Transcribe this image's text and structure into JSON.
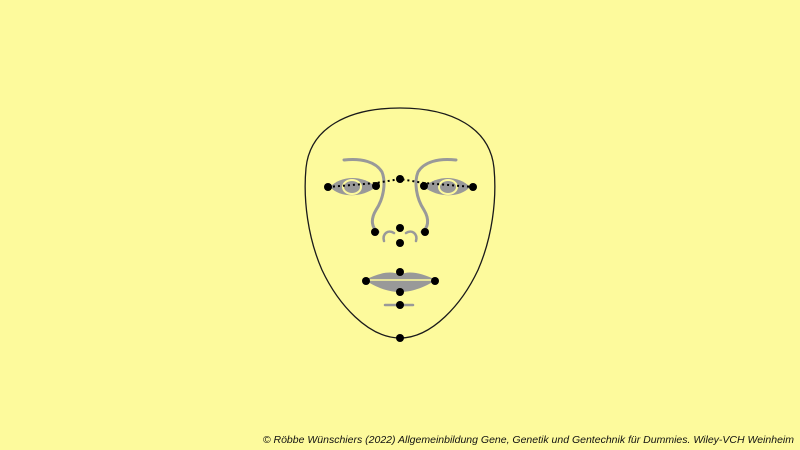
{
  "colors": {
    "background": "#fdfa9c",
    "outline": "#1a1a1a",
    "features": "#999999",
    "landmarks": "#000000"
  },
  "landmark_icon": "filled-circle",
  "landmark_count": 16,
  "connector_style": "dotted",
  "footer": {
    "copyright": "© Röbbe Wünschiers (2022) Allgemeinbildung Gene, Genetik und Gentechnik für Dummies. Wiley-VCH Weinheim"
  }
}
